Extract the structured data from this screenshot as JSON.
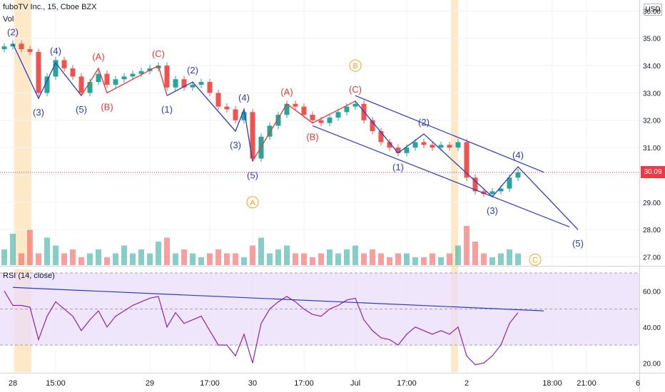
{
  "header": {
    "title": "fuboTV Inc., 15, Cboe BZX",
    "vol_label": "Vol",
    "rsi_label": "RSI (14, close)",
    "currency": "USD",
    "last_price_label": "30.09"
  },
  "colors": {
    "up": "#26a69a",
    "down": "#ef5350",
    "wave_blue": "#2a3cc4",
    "wave_red": "#e53935",
    "circle_orange": "#f5a623",
    "rsi_line": "#8e24aa",
    "rsi_band": "#e9dcfb",
    "highlight": "#fde9c8"
  },
  "chart_data": {
    "type": "candlestick",
    "price_axis": {
      "ylim": [
        26.7,
        36.4
      ],
      "ticks": [
        "36.00",
        "35.00",
        "34.00",
        "33.00",
        "32.00",
        "31.00",
        "30.00",
        "29.00",
        "28.00",
        "27.00"
      ],
      "tick_values": [
        36,
        35,
        34,
        33,
        32,
        31,
        30,
        29,
        28,
        27
      ]
    },
    "rsi_axis": {
      "ylim": [
        15,
        72
      ],
      "ticks": [
        "60.00",
        "40.00",
        "20.00"
      ],
      "tick_values": [
        60,
        40,
        20
      ],
      "band": [
        30,
        70
      ],
      "midline": 50
    },
    "x_axis": {
      "ticks": [
        "28",
        "15:00",
        "29",
        "17:00",
        "30",
        "17:00",
        "Jul",
        "17:00",
        "2",
        "18:00",
        "21:00",
        "6"
      ],
      "tick_positions": [
        1,
        6,
        17,
        24,
        29,
        35,
        41,
        47,
        54,
        64,
        68,
        74
      ]
    },
    "last_price": 30.09,
    "candles_close": [
      34.7,
      34.8,
      34.6,
      34.5,
      33.0,
      33.6,
      34.2,
      33.9,
      33.6,
      33.0,
      33.4,
      33.7,
      33.3,
      33.5,
      33.6,
      33.7,
      33.8,
      33.9,
      34.0,
      33.2,
      33.5,
      33.2,
      33.3,
      33.4,
      33.0,
      32.5,
      32.4,
      32.0,
      32.3,
      30.6,
      31.4,
      31.8,
      32.2,
      32.6,
      32.5,
      32.2,
      32.0,
      31.9,
      32.1,
      32.3,
      32.5,
      32.6,
      32.0,
      31.6,
      31.2,
      31.0,
      30.8,
      31.0,
      31.2,
      31.1,
      31.0,
      31.1,
      31.0,
      31.2,
      29.9,
      29.4,
      29.3,
      29.4,
      29.5,
      29.9,
      30.1
    ],
    "volume": [
      0.4,
      0.8,
      0.3,
      0.9,
      0.3,
      0.7,
      0.5,
      0.3,
      0.4,
      0.2,
      0.3,
      0.4,
      0.2,
      0.3,
      0.5,
      0.3,
      0.4,
      0.3,
      0.6,
      0.7,
      0.3,
      0.4,
      0.3,
      0.2,
      0.3,
      0.4,
      0.3,
      0.3,
      0.2,
      0.5,
      0.7,
      0.3,
      0.4,
      0.5,
      0.3,
      0.3,
      0.2,
      0.3,
      0.4,
      0.3,
      0.4,
      0.5,
      0.3,
      0.4,
      0.3,
      0.2,
      0.3,
      0.3,
      0.2,
      0.2,
      0.3,
      0.2,
      0.3,
      0.5,
      1.0,
      0.6,
      0.3,
      0.2,
      0.3,
      0.4,
      0.3
    ],
    "rsi": [
      60,
      52,
      52,
      51,
      33,
      46,
      54,
      50,
      46,
      38,
      44,
      49,
      40,
      46,
      49,
      52,
      54,
      56,
      57,
      40,
      48,
      42,
      44,
      46,
      38,
      30,
      30,
      24,
      36,
      20,
      42,
      50,
      54,
      57,
      54,
      50,
      47,
      46,
      50,
      52,
      55,
      56,
      44,
      38,
      34,
      33,
      30,
      36,
      40,
      38,
      36,
      38,
      36,
      40,
      24,
      19,
      20,
      24,
      30,
      42,
      48
    ],
    "waves": [
      {
        "label": "(2)",
        "color": "blue",
        "x": 1,
        "y": 34.8,
        "pos": "above"
      },
      {
        "label": "(3)",
        "color": "blue",
        "x": 4,
        "y": 32.8,
        "pos": "below"
      },
      {
        "label": "(4)",
        "color": "blue",
        "x": 6,
        "y": 34.1,
        "pos": "above"
      },
      {
        "label": "(5)",
        "color": "blue",
        "x": 9,
        "y": 32.9,
        "pos": "below"
      },
      {
        "label": "(A)",
        "color": "red",
        "x": 11,
        "y": 33.9,
        "pos": "above"
      },
      {
        "label": "(B)",
        "color": "red",
        "x": 12,
        "y": 33.0,
        "pos": "below"
      },
      {
        "label": "(C)",
        "color": "red",
        "x": 18,
        "y": 34.0,
        "pos": "above"
      },
      {
        "label": "(1)",
        "color": "blue",
        "x": 19,
        "y": 32.9,
        "pos": "below"
      },
      {
        "label": "(2)",
        "color": "blue",
        "x": 22,
        "y": 33.4,
        "pos": "above"
      },
      {
        "label": "(3)",
        "color": "blue",
        "x": 27,
        "y": 31.6,
        "pos": "below"
      },
      {
        "label": "(4)",
        "color": "blue",
        "x": 28,
        "y": 32.4,
        "pos": "above"
      },
      {
        "label": "(5)",
        "color": "blue",
        "x": 29,
        "y": 30.5,
        "pos": "below"
      },
      {
        "label": "(A)",
        "color": "red",
        "x": 33,
        "y": 32.6,
        "pos": "above"
      },
      {
        "label": "(B)",
        "color": "red",
        "x": 36,
        "y": 31.9,
        "pos": "below"
      },
      {
        "label": "(C)",
        "color": "red",
        "x": 41,
        "y": 32.7,
        "pos": "above"
      },
      {
        "label": "(1)",
        "color": "blue",
        "x": 46,
        "y": 30.8,
        "pos": "below"
      },
      {
        "label": "(2)",
        "color": "blue",
        "x": 49,
        "y": 31.5,
        "pos": "above"
      },
      {
        "label": "(3)",
        "color": "blue",
        "x": 57,
        "y": 29.2,
        "pos": "below"
      },
      {
        "label": "(4)",
        "color": "blue",
        "x": 60,
        "y": 30.3,
        "pos": "above"
      },
      {
        "label": "(5)",
        "color": "blue",
        "x": 67,
        "y": 28.0,
        "pos": "below"
      }
    ],
    "circle_labels": [
      {
        "label": "A",
        "x": 29,
        "y": 29.0
      },
      {
        "label": "B",
        "x": 41,
        "y": 34.0
      },
      {
        "label": "C",
        "x": 62,
        "y": 26.9
      }
    ]
  }
}
